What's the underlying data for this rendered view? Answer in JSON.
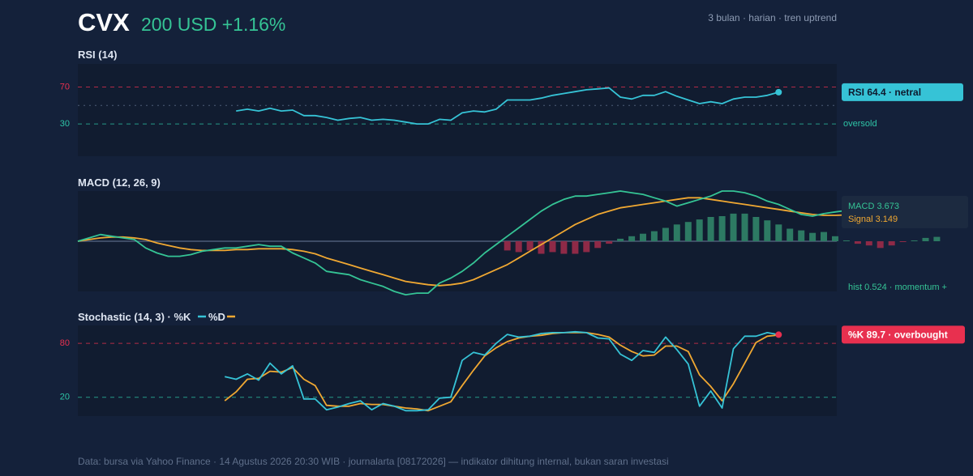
{
  "header": {
    "symbol": "CVX",
    "price_line": "200 USD +1.16%",
    "meta": "3 bulan · harian · tren uptrend"
  },
  "footer": "Data: bursa via Yahoo Finance · 14 Agustus 2026 20:30 WIB · journalarta [08172026] — indikator dihitung internal, bukan saran investasi",
  "colors": {
    "background": "#14213a",
    "panel": "#111c30",
    "rsi_line": "#36c3d6",
    "macd_line": "#35c495",
    "signal_line": "#f0a832",
    "stoch_k": "#36c3d6",
    "stoch_d": "#f0a832",
    "overbought": "#e8304f",
    "oversold": "#2ec4a6",
    "hist_positive": "#2d7a63",
    "hist_negative": "#8e2a47"
  },
  "chart_data": [
    {
      "type": "line",
      "title": "RSI (14)",
      "ylim": [
        -5,
        95
      ],
      "levels": {
        "overbought": 70,
        "oversold": 30,
        "mid": 50
      },
      "level_labels": {
        "overbought": "70",
        "oversold": "30",
        "oversold_text": "oversold"
      },
      "start_index": 14,
      "values": [
        44,
        46,
        44,
        47,
        44,
        45,
        39,
        39,
        37,
        34,
        36,
        37,
        34,
        35,
        34,
        32,
        30,
        30,
        35,
        34,
        42,
        44,
        43,
        46,
        56,
        56,
        56,
        58,
        61,
        63,
        65,
        67,
        68,
        69,
        59,
        57,
        61,
        61,
        65,
        60,
        56,
        52,
        54,
        52,
        57,
        59,
        59,
        61,
        64.4
      ],
      "badge": "RSI 64.4 · netral"
    },
    {
      "type": "line",
      "title": "MACD (12, 26, 9)",
      "ylim": [
        -6,
        6
      ],
      "series": [
        {
          "name": "MACD",
          "values": [
            0,
            0.4,
            0.8,
            0.6,
            0.4,
            0.2,
            -0.8,
            -1.4,
            -1.8,
            -1.8,
            -1.6,
            -1.2,
            -1.0,
            -0.8,
            -0.8,
            -0.6,
            -0.4,
            -0.6,
            -0.6,
            -1.4,
            -2.0,
            -2.6,
            -3.6,
            -3.8,
            -4.0,
            -4.6,
            -5.0,
            -5.4,
            -6.0,
            -6.4,
            -6.2,
            -6.2,
            -5.0,
            -4.4,
            -3.6,
            -2.6,
            -1.4,
            -0.4,
            0.6,
            1.6,
            2.6,
            3.6,
            4.4,
            5.0,
            5.4,
            5.4,
            5.6,
            5.8,
            6.0,
            5.8,
            5.6,
            5.2,
            4.8,
            4.2,
            4.6,
            5.0,
            5.4,
            6.0,
            6.0,
            5.8,
            5.4,
            4.8,
            4.4,
            3.8,
            3.2,
            3.0,
            3.3,
            3.5,
            3.673
          ]
        },
        {
          "name": "Signal",
          "values": [
            0,
            0.2,
            0.4,
            0.5,
            0.5,
            0.4,
            0.2,
            -0.2,
            -0.5,
            -0.8,
            -1.0,
            -1.1,
            -1.1,
            -1.1,
            -1.0,
            -1.0,
            -0.9,
            -0.9,
            -0.9,
            -1.0,
            -1.2,
            -1.5,
            -2.0,
            -2.4,
            -2.8,
            -3.2,
            -3.6,
            -4.0,
            -4.4,
            -4.8,
            -5.0,
            -5.2,
            -5.3,
            -5.2,
            -5.0,
            -4.6,
            -4.0,
            -3.4,
            -2.8,
            -2.0,
            -1.2,
            -0.4,
            0.4,
            1.2,
            2.0,
            2.6,
            3.2,
            3.6,
            4.0,
            4.2,
            4.4,
            4.6,
            4.8,
            5.0,
            5.2,
            5.2,
            5.0,
            4.8,
            4.6,
            4.4,
            4.2,
            4.0,
            3.8,
            3.6,
            3.4,
            3.2,
            3.1,
            3.1,
            3.149
          ]
        }
      ],
      "histogram_start_index": 38,
      "histogram": [
        -1.1,
        -1.3,
        -1.1,
        -1.5,
        -1.3,
        -1.5,
        -1.5,
        -1.3,
        -0.8,
        -0.3,
        0.3,
        0.6,
        0.9,
        1.2,
        1.6,
        2.0,
        2.3,
        2.6,
        2.9,
        3.0,
        3.3,
        3.3,
        2.9,
        2.5,
        2.0,
        1.5,
        1.3,
        1.0,
        1.1,
        0.6,
        0.1,
        -0.3,
        -0.5,
        -0.8,
        -0.5,
        -0.1,
        0.1,
        0.4,
        0.524
      ],
      "labels": {
        "macd": "MACD 3.673",
        "signal": "Signal 3.149",
        "hist": "hist 0.524 · momentum +"
      }
    },
    {
      "type": "line",
      "title": "Stochastic (14, 3) · %K",
      "legend_d": "%D",
      "ylim": [
        -1,
        100
      ],
      "levels": {
        "overbought": 80,
        "oversold": 20
      },
      "level_labels": {
        "overbought": "80",
        "oversold": "20"
      },
      "series": [
        {
          "name": "%K",
          "start_index": 13,
          "values": [
            43,
            40,
            46,
            39,
            58,
            46,
            55,
            18,
            18,
            6,
            9,
            13,
            16,
            6,
            13,
            10,
            5,
            5,
            6,
            19,
            20,
            61,
            70,
            67,
            80,
            90,
            87,
            88,
            91,
            92,
            92,
            93,
            92,
            86,
            85,
            68,
            61,
            72,
            70,
            87,
            73,
            57,
            10,
            27,
            8,
            74,
            88,
            88,
            92,
            89.7
          ]
        },
        {
          "name": "%D",
          "start_index": 13,
          "values": [
            16,
            26,
            40,
            41,
            49,
            48,
            53,
            40,
            33,
            11,
            10,
            10,
            13,
            12,
            12,
            10,
            8,
            7,
            5,
            10,
            15,
            33,
            50,
            66,
            75,
            82,
            86,
            88,
            89,
            91,
            92,
            92,
            92,
            90,
            87,
            78,
            71,
            66,
            67,
            77,
            77,
            71,
            45,
            32,
            16,
            35,
            58,
            81,
            88,
            89.3
          ]
        }
      ],
      "badge": "%K 89.7 · overbought"
    }
  ]
}
